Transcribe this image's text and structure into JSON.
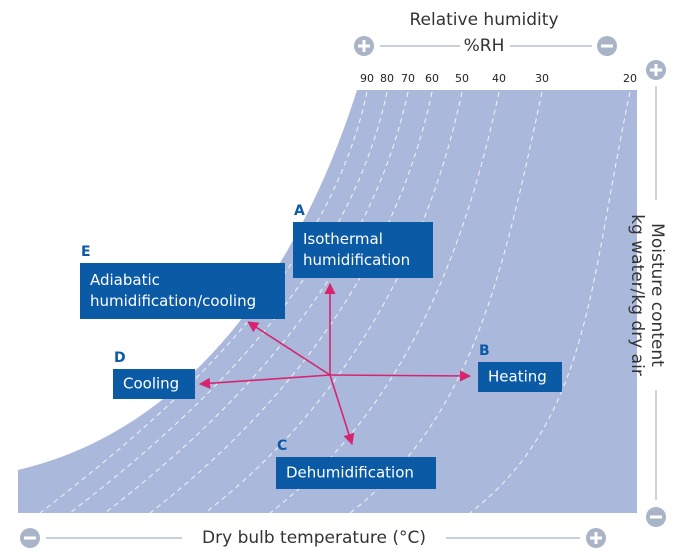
{
  "top_axis": {
    "title": "Relative humidity",
    "unit": "%RH",
    "labels": [
      90,
      80,
      70,
      60,
      50,
      40,
      30,
      20
    ]
  },
  "bottom_axis": {
    "title": "Dry bulb temperature (°C)"
  },
  "right_axis": {
    "title": "Moisture content",
    "unit": "kg water/kg dry air"
  },
  "processes": [
    {
      "letter": "A",
      "lines": [
        "Isothermal",
        "humidification"
      ]
    },
    {
      "letter": "B",
      "lines": [
        "Heating"
      ]
    },
    {
      "letter": "C",
      "lines": [
        "Dehumidification"
      ]
    },
    {
      "letter": "D",
      "lines": [
        "Cooling"
      ]
    },
    {
      "letter": "E",
      "lines": [
        "Adiabatic",
        "humidification/cooling"
      ]
    }
  ]
}
